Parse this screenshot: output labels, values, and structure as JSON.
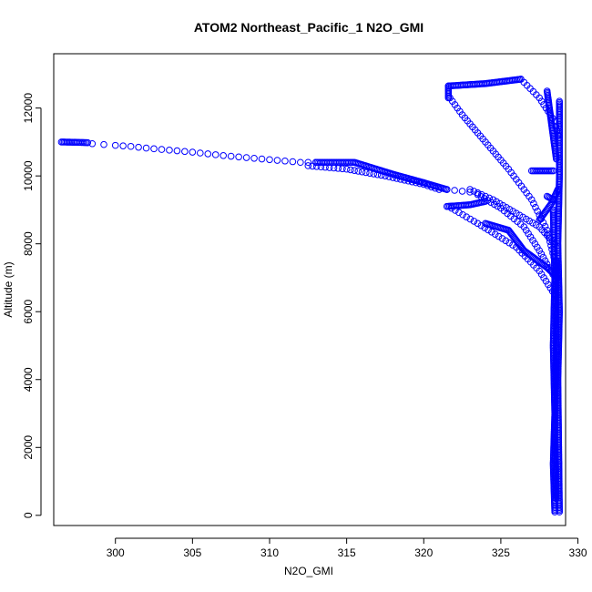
{
  "chart_data": {
    "type": "scatter",
    "title": "ATOM2 Northeast_Pacific_1 N2O_GMI",
    "xlabel": "N2O_GMI",
    "ylabel": "Altitude (m)",
    "xlim": [
      296,
      329.2
    ],
    "ylim": [
      -300,
      13600
    ],
    "xticks": [
      300,
      305,
      310,
      315,
      320,
      325,
      330
    ],
    "yticks": [
      0,
      2000,
      4000,
      6000,
      8000,
      10000,
      12000
    ],
    "xtick_labels": [
      "300",
      "305",
      "310",
      "315",
      "320",
      "325",
      "330"
    ],
    "ytick_labels": [
      "0",
      "2000",
      "4000",
      "6000",
      "8000",
      "10000",
      "12000"
    ],
    "grid": false,
    "marker": "open-circle",
    "point_color": "#0000ff",
    "series": [
      {
        "segments": [
          {
            "x": [
              296.5,
              297.5,
              298.2
            ],
            "y": [
              11000,
              10990,
              10980
            ],
            "n": 14,
            "mode": "dense"
          },
          {
            "x": [
              298.5,
              300.0,
              301.0,
              302.0,
              303.0,
              304.0,
              305.0,
              306.0,
              307.0,
              308.0,
              309.0,
              310.0,
              311.0,
              312.0,
              313.0
            ],
            "y": [
              10950,
              10900,
              10870,
              10820,
              10780,
              10740,
              10700,
              10650,
              10600,
              10560,
              10520,
              10480,
              10440,
              10400,
              10400
            ],
            "mode": "sparse"
          },
          {
            "x": [
              313.0,
              315.5,
              318.0,
              320.0,
              321.5
            ],
            "y": [
              10400,
              10400,
              10050,
              9800,
              9600
            ],
            "mode": "dense"
          },
          {
            "x": [
              312.5,
              315.0,
              317.5,
              320.0,
              321.0
            ],
            "y": [
              10300,
              10200,
              10000,
              9750,
              9600
            ],
            "mode": "medium"
          },
          {
            "x": [
              321.5,
              322.5,
              323.5
            ],
            "y": [
              9600,
              9550,
              9500
            ],
            "mode": "sparse"
          },
          {
            "x": [
              321.5,
              323.0,
              324.0
            ],
            "y": [
              9100,
              9150,
              9250
            ],
            "mode": "dense"
          },
          {
            "x": [
              321.8,
              323.5,
              326.0,
              327.5,
              328.5
            ],
            "y": [
              9050,
              8600,
              7900,
              7200,
              6500
            ],
            "mode": "medium"
          },
          {
            "x": [
              323.0,
              324.5,
              326.0,
              327.5,
              328.5
            ],
            "y": [
              9600,
              9300,
              8900,
              8500,
              8000
            ],
            "mode": "medium"
          },
          {
            "x": [
              323.5,
              325.0,
              326.5,
              327.5,
              328.5
            ],
            "y": [
              9450,
              9050,
              8500,
              7800,
              7000
            ],
            "mode": "medium"
          },
          {
            "x": [
              324.0,
              325.5,
              326.5,
              328.0,
              328.7
            ],
            "y": [
              8600,
              8400,
              7800,
              7300,
              7000
            ],
            "mode": "dense"
          },
          {
            "x": [
              321.6,
              324.0,
              326.3
            ],
            "y": [
              12650,
              12720,
              12850
            ],
            "mode": "dense"
          },
          {
            "x": [
              326.3,
              327.5,
              328.5,
              328.7
            ],
            "y": [
              12850,
              12300,
              11600,
              11200
            ],
            "mode": "medium"
          },
          {
            "x": [
              321.7,
              322.5,
              324.0,
              325.5,
              327.0,
              328.0,
              328.5
            ],
            "y": [
              12300,
              11800,
              11000,
              10200,
              9300,
              8400,
              7500
            ],
            "mode": "medium"
          },
          {
            "x": [
              321.6,
              321.6
            ],
            "y": [
              12650,
              12300
            ],
            "mode": "dense"
          },
          {
            "x": [
              328.0,
              328.3,
              328.6
            ],
            "y": [
              12500,
              11500,
              10500
            ],
            "mode": "dense"
          },
          {
            "x": [
              327.0,
              327.8,
              328.4
            ],
            "y": [
              10150,
              10150,
              10150
            ],
            "mode": "dense"
          },
          {
            "x": [
              327.5,
              328.3,
              328.7
            ],
            "y": [
              8700,
              9200,
              9600
            ],
            "mode": "dense"
          },
          {
            "x": [
              328.0,
              328.4
            ],
            "y": [
              9400,
              9300
            ],
            "mode": "dense"
          },
          {
            "x": [
              328.8,
              328.8,
              328.7,
              328.8,
              328.7,
              328.8
            ],
            "y": [
              12200,
              10000,
              8000,
              6000,
              4000,
              100
            ],
            "mode": "dense"
          },
          {
            "x": [
              328.4,
              328.5,
              328.4,
              328.5,
              328.4,
              328.5
            ],
            "y": [
              9000,
              7000,
              5000,
              3000,
              1500,
              100
            ],
            "mode": "dense"
          },
          {
            "x": [
              328.6,
              328.6,
              328.5,
              328.6
            ],
            "y": [
              7500,
              5000,
              2500,
              500
            ],
            "mode": "dense"
          }
        ]
      }
    ]
  }
}
